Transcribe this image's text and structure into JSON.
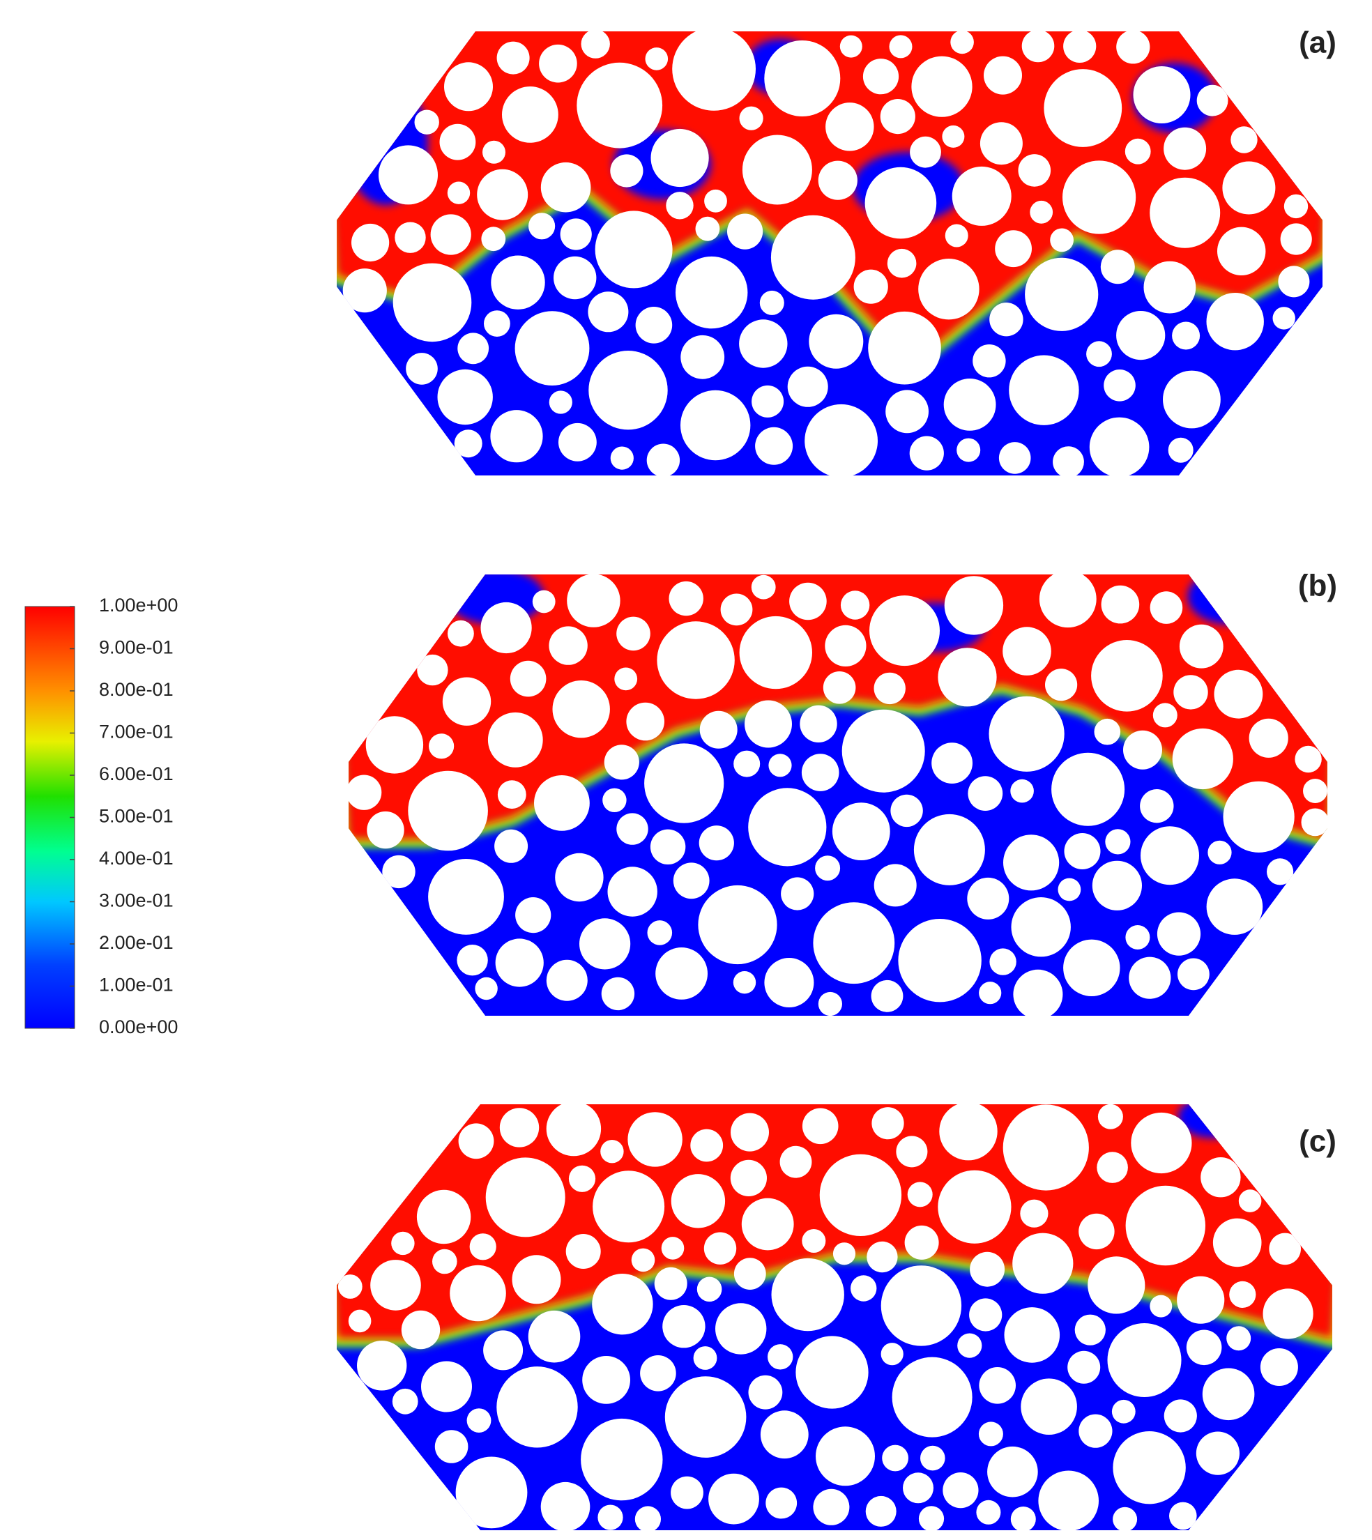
{
  "panels": [
    {
      "label": "(a)"
    },
    {
      "label": "(b)"
    },
    {
      "label": "(c)"
    }
  ],
  "colorbar": {
    "lim": [
      0,
      1
    ],
    "ticks": [
      {
        "value": 1,
        "label": "1.00e+00"
      },
      {
        "value": 0.9,
        "label": "9.00e-01"
      },
      {
        "value": 0.8,
        "label": "8.00e-01"
      },
      {
        "value": 0.7,
        "label": "7.00e-01"
      },
      {
        "value": 0.6,
        "label": "6.00e-01"
      },
      {
        "value": 0.5,
        "label": "5.00e-01"
      },
      {
        "value": 0.4,
        "label": "4.00e-01"
      },
      {
        "value": 0.3,
        "label": "3.00e-01"
      },
      {
        "value": 0.2,
        "label": "2.00e-01"
      },
      {
        "value": 0.1,
        "label": "1.00e-01"
      },
      {
        "value": 0,
        "label": "0.00e+00"
      }
    ]
  }
}
